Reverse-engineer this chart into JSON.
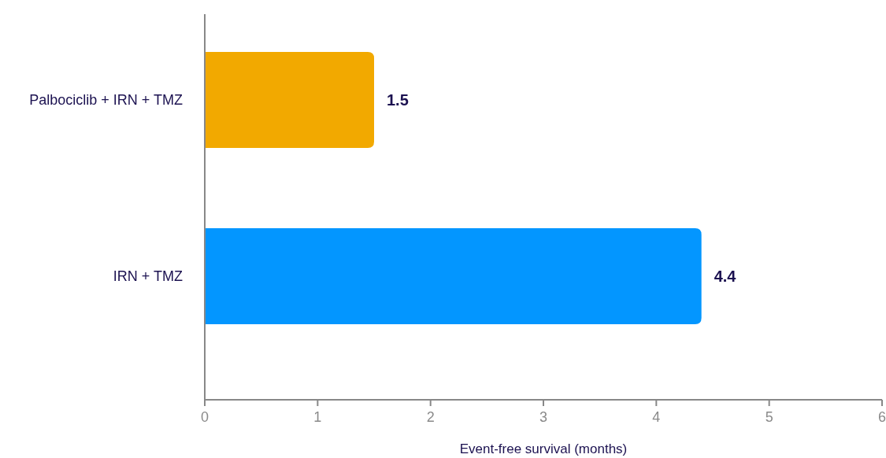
{
  "chart_data": {
    "type": "bar",
    "orientation": "horizontal",
    "xlabel": "Event-free survival (months)",
    "categories": [
      "Palbociclib + IRN + TMZ",
      "IRN + TMZ"
    ],
    "values": [
      1.5,
      4.4
    ],
    "colors": [
      "#f2a900",
      "#0396ff"
    ],
    "xlim": [
      0,
      6
    ],
    "xticks": [
      0,
      1,
      2,
      3,
      4,
      5,
      6
    ],
    "data_labels": true,
    "grid": false,
    "legend": false
  }
}
